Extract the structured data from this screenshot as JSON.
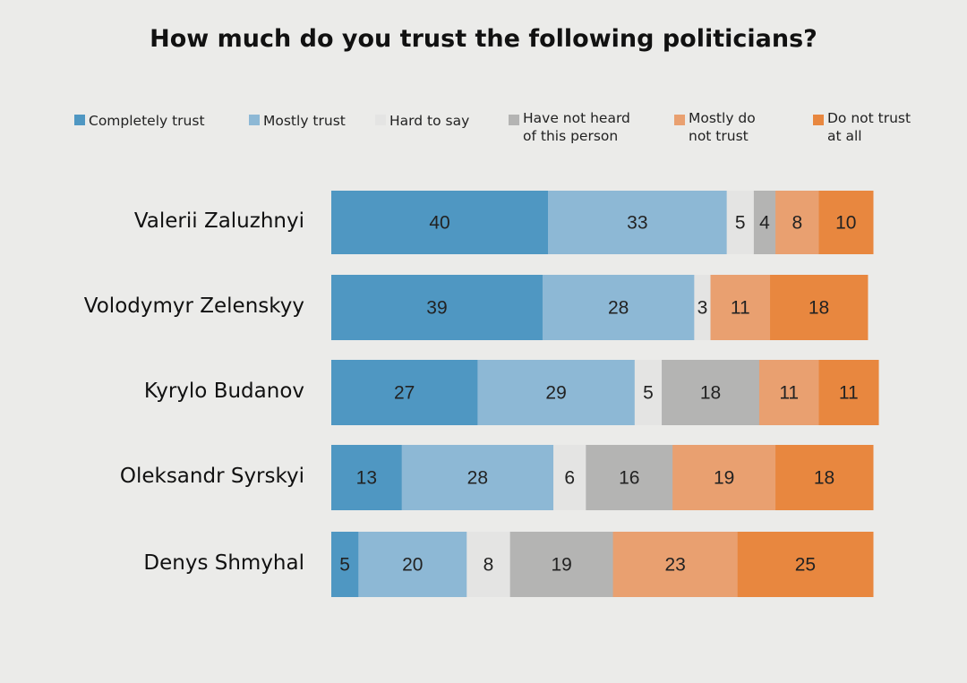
{
  "chart_data": {
    "type": "bar",
    "orientation": "horizontal",
    "stacked": true,
    "title": "How much do you trust the following politicians?",
    "categories": [
      "Valerii Zaluzhnyi",
      "Volodymyr Zelenskyy",
      "Kyrylo Budanov",
      "Oleksandr Syrskyi",
      "Denys Shmyhal"
    ],
    "series": [
      {
        "name": "Completely trust",
        "color": "#4f97c2",
        "values": [
          40,
          39,
          27,
          13,
          5
        ]
      },
      {
        "name": "Mostly trust",
        "color": "#8db8d5",
        "values": [
          33,
          28,
          29,
          28,
          20
        ]
      },
      {
        "name": "Hard to say",
        "color": "#e4e4e3",
        "values": [
          5,
          3,
          5,
          6,
          8
        ]
      },
      {
        "name": "Have not heard of this person",
        "color": "#b4b4b3",
        "values": [
          4,
          0,
          18,
          16,
          19
        ]
      },
      {
        "name": "Mostly do not trust",
        "color": "#e9a070",
        "values": [
          8,
          11,
          11,
          19,
          23
        ]
      },
      {
        "name": "Do not trust at all",
        "color": "#e8873f",
        "values": [
          10,
          18,
          11,
          18,
          25
        ]
      }
    ],
    "legend_position": "top",
    "grid": false,
    "xlim": [
      0,
      100
    ]
  }
}
